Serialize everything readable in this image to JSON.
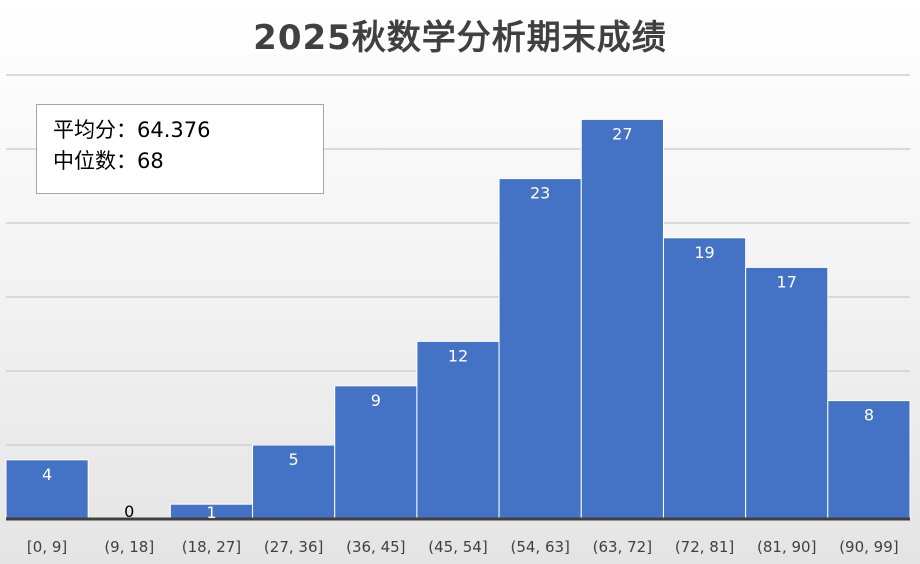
{
  "chart_data": {
    "type": "bar",
    "title": "2025秋数学分析期末成绩",
    "categories": [
      "[0, 9]",
      "(9, 18]",
      "(18, 27]",
      "(27, 36]",
      "(36, 45]",
      "(45, 54]",
      "(54, 63]",
      "(63, 72]",
      "(72, 81]",
      "(81, 90]",
      "(90, 99]"
    ],
    "values": [
      4,
      0,
      1,
      5,
      9,
      12,
      23,
      27,
      19,
      17,
      8
    ],
    "ylim": [
      0,
      30
    ],
    "grid": true,
    "bar_color": "#4472C4",
    "annotation": {
      "mean_line": "平均分：64.376",
      "median_line": "中位数：68"
    }
  }
}
